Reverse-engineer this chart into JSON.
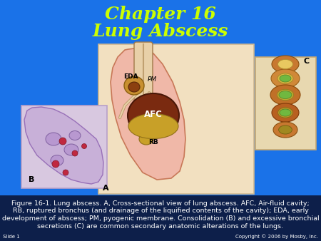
{
  "title_line1": "Chapter 16",
  "title_line2": "Lung Abscess",
  "title_color": "#CCFF00",
  "title_fontsize": 18,
  "bg_color": "#1a72e8",
  "caption_text_line1": "Figure 16-1. Lung abscess. A, Cross-sectional view of lung abscess. AFC, Air-fluid cavity;",
  "caption_text_line2": "RB, ruptured bronchus (and drainage of the liquified contents of the cavity); EDA, early",
  "caption_text_line3": "development of abscess; PM, pyogenic membrane. Consolidation (B) and excessive bronchial",
  "caption_text_line4": "secretions (C) are common secondary anatomic alterations of the lungs.",
  "caption_color": "#FFFFFF",
  "caption_fontsize": 6.8,
  "slide_label": "Slide 1",
  "copyright": "Copyright © 2006 by Mosby, Inc.",
  "label_A": "A",
  "label_B": "B",
  "label_C": "C",
  "label_AFC": "AFC",
  "label_EDA": "EDA",
  "label_PM": "PM",
  "label_RB": "RB",
  "bg_caption": "#0d1f4a"
}
